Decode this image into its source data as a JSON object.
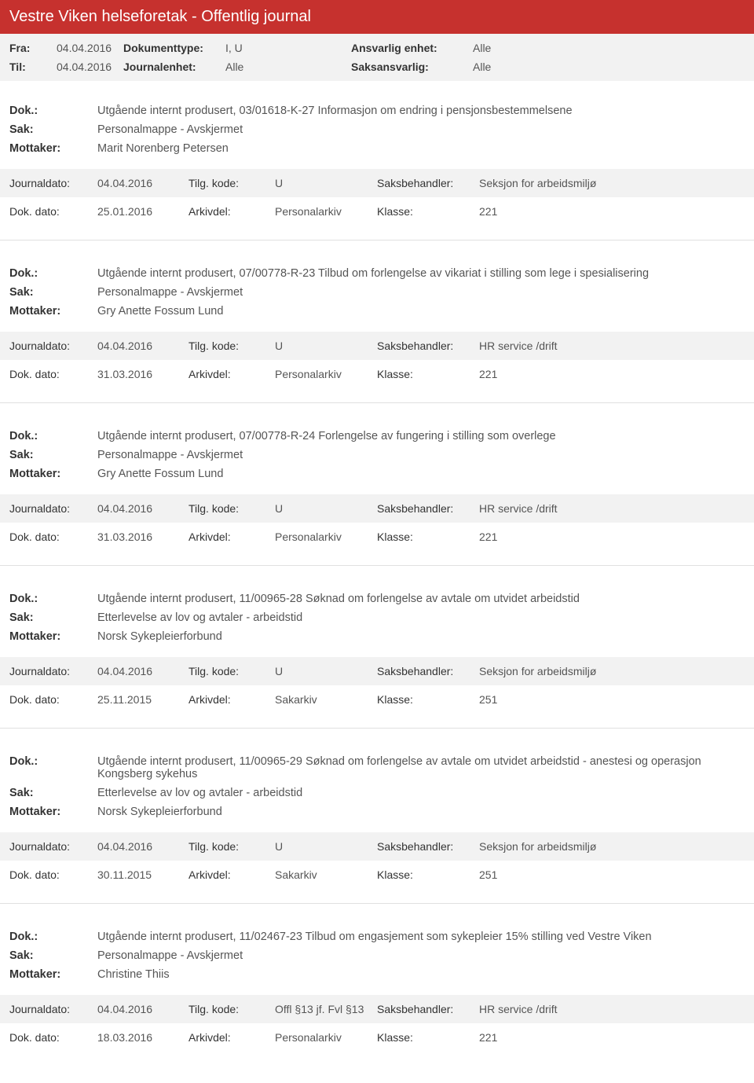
{
  "header": {
    "title": "Vestre Viken helseforetak - Offentlig journal"
  },
  "filter": {
    "fra_label": "Fra:",
    "fra_value": "04.04.2016",
    "til_label": "Til:",
    "til_value": "04.04.2016",
    "doktype_label": "Dokumenttype:",
    "doktype_value": "I, U",
    "journalenhet_label": "Journalenhet:",
    "journalenhet_value": "Alle",
    "ansvarlig_label": "Ansvarlig enhet:",
    "ansvarlig_value": "Alle",
    "saks_label": "Saksansvarlig:",
    "saks_value": "Alle"
  },
  "labels": {
    "dok": "Dok.:",
    "sak": "Sak:",
    "mottaker": "Mottaker:",
    "journaldato": "Journaldato:",
    "dokdato": "Dok. dato:",
    "tilgkode": "Tilg. kode:",
    "arkivdel": "Arkivdel:",
    "saksbehandler": "Saksbehandler:",
    "klasse": "Klasse:"
  },
  "entries": [
    {
      "dok": "Utgående internt produsert, 03/01618-K-27 Informasjon om endring i pensjonsbestemmelsene",
      "sak": "Personalmappe - Avskjermet",
      "mottaker": "Marit Norenberg Petersen",
      "journaldato": "04.04.2016",
      "tilgkode": "U",
      "saksbehandler": "Seksjon for arbeidsmiljø",
      "dokdato": "25.01.2016",
      "arkivdel": "Personalarkiv",
      "klasse": "221"
    },
    {
      "dok": "Utgående internt produsert, 07/00778-R-23 Tilbud om forlengelse av vikariat i stilling som lege i spesialisering",
      "sak": "Personalmappe - Avskjermet",
      "mottaker": "Gry Anette Fossum Lund",
      "journaldato": "04.04.2016",
      "tilgkode": "U",
      "saksbehandler": "HR service /drift",
      "dokdato": "31.03.2016",
      "arkivdel": "Personalarkiv",
      "klasse": "221"
    },
    {
      "dok": "Utgående internt produsert, 07/00778-R-24 Forlengelse av fungering i stilling som overlege",
      "sak": "Personalmappe - Avskjermet",
      "mottaker": "Gry Anette Fossum Lund",
      "journaldato": "04.04.2016",
      "tilgkode": "U",
      "saksbehandler": "HR service /drift",
      "dokdato": "31.03.2016",
      "arkivdel": "Personalarkiv",
      "klasse": "221"
    },
    {
      "dok": "Utgående internt produsert, 11/00965-28 Søknad om forlengelse av avtale om utvidet arbeidstid",
      "sak": "Etterlevelse av lov og avtaler - arbeidstid",
      "mottaker": "Norsk Sykepleierforbund",
      "journaldato": "04.04.2016",
      "tilgkode": "U",
      "saksbehandler": "Seksjon for arbeidsmiljø",
      "dokdato": "25.11.2015",
      "arkivdel": "Sakarkiv",
      "klasse": "251"
    },
    {
      "dok": "Utgående internt produsert, 11/00965-29 Søknad om forlengelse av avtale om utvidet arbeidstid - anestesi og operasjon Kongsberg sykehus",
      "sak": "Etterlevelse av lov og avtaler - arbeidstid",
      "mottaker": "Norsk Sykepleierforbund",
      "journaldato": "04.04.2016",
      "tilgkode": "U",
      "saksbehandler": "Seksjon for arbeidsmiljø",
      "dokdato": "30.11.2015",
      "arkivdel": "Sakarkiv",
      "klasse": "251"
    },
    {
      "dok": "Utgående internt produsert, 11/02467-23 Tilbud om engasjement som sykepleier 15% stilling ved Vestre Viken",
      "sak": "Personalmappe - Avskjermet",
      "mottaker": "Christine Thiis",
      "journaldato": "04.04.2016",
      "tilgkode": "Offl §13 jf. Fvl §13",
      "saksbehandler": "HR service /drift",
      "dokdato": "18.03.2016",
      "arkivdel": "Personalarkiv",
      "klasse": "221"
    }
  ]
}
